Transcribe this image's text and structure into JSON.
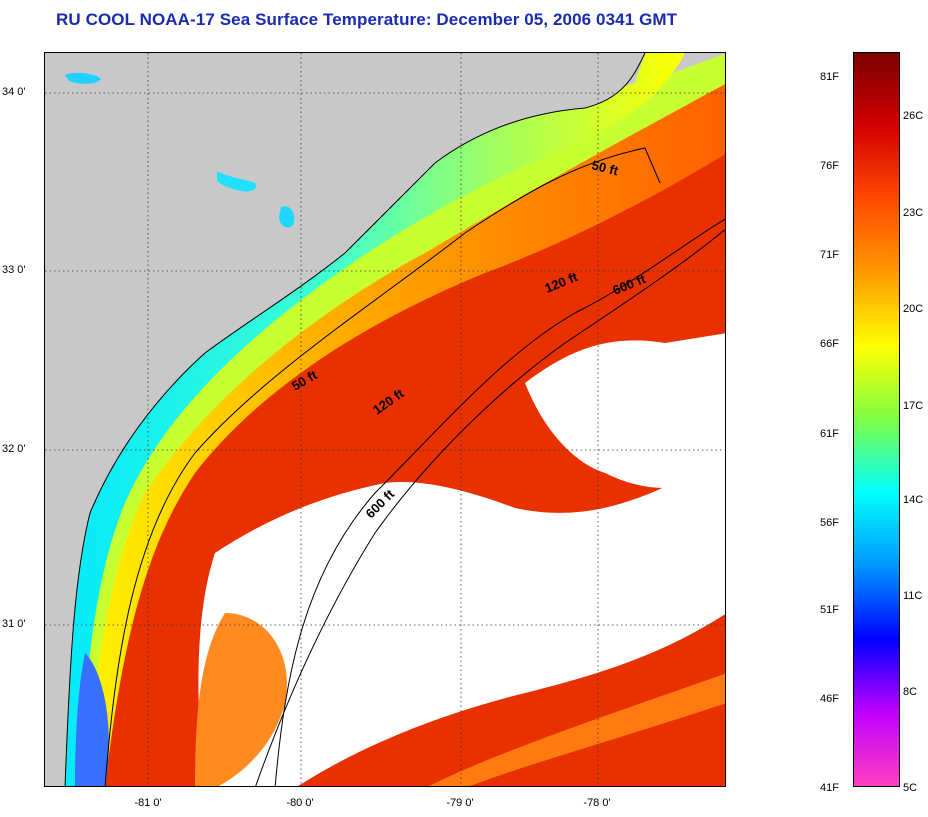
{
  "title": "RU COOL  NOAA-17  Sea Surface Temperature:  December 05, 2006 0341 GMT",
  "map": {
    "latitude_labels": [
      "34 0'",
      "33 0'",
      "32 0'",
      "31 0'"
    ],
    "longitude_labels": [
      "-81 0'",
      "-80 0'",
      "-79 0'",
      "-78 0'"
    ],
    "contour_labels": [
      "50 ft",
      "120 ft",
      "600 ft",
      "50 ft",
      "120 ft",
      "600 ft"
    ],
    "land_color": "#c8c8c8",
    "cloud_color": "#ffffff"
  },
  "colorbar": {
    "fahrenheit_labels": [
      "81F",
      "76F",
      "71F",
      "66F",
      "61F",
      "56F",
      "51F",
      "46F",
      "41F"
    ],
    "celsius_labels": [
      "26C",
      "23C",
      "20C",
      "17C",
      "14C",
      "11C",
      "8C",
      "5C"
    ],
    "colors": [
      "#7a0000",
      "#d40000",
      "#ff4a00",
      "#ff9a00",
      "#ffff00",
      "#7dff45",
      "#00ffff",
      "#0096ff",
      "#0000ff",
      "#c000ff",
      "#ff40c0"
    ]
  }
}
